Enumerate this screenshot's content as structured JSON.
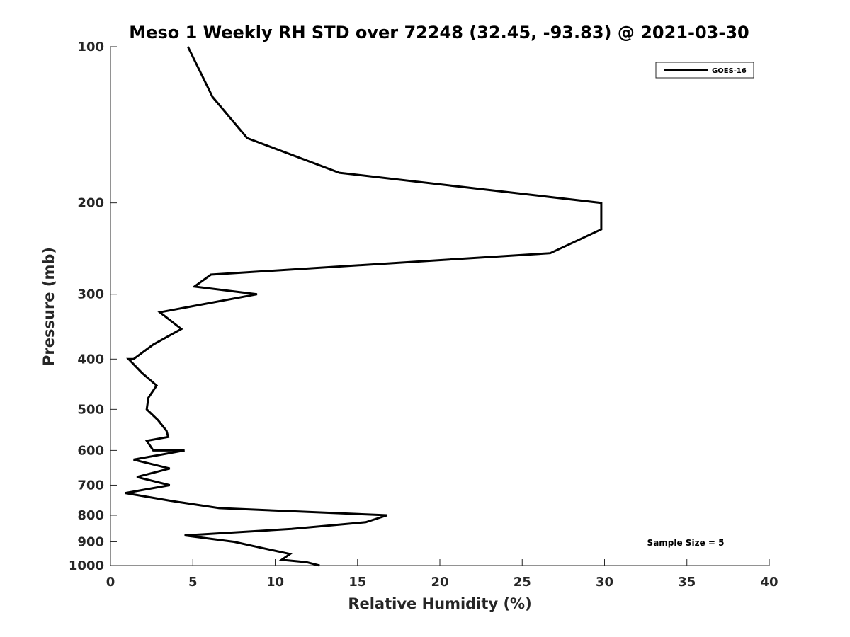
{
  "chart_data": {
    "type": "line",
    "title": "Meso 1 Weekly RH STD over 72248 (32.45, -93.83) @ 2021-03-30",
    "xlabel": "Relative Humidity (%)",
    "ylabel": "Pressure (mb)",
    "xlim": [
      0,
      40
    ],
    "ylim": [
      100,
      1000
    ],
    "y_scale": "log",
    "y_reversed": true,
    "x_ticks": [
      0,
      5,
      10,
      15,
      20,
      25,
      30,
      35,
      40
    ],
    "y_ticks": [
      100,
      200,
      300,
      400,
      500,
      600,
      700,
      800,
      900,
      1000
    ],
    "grid": false,
    "legend_position": "top-right",
    "annotation": "Sample Size = 5",
    "series": [
      {
        "name": "GOES-16",
        "color": "#000000",
        "points": [
          [
            4.7,
            100
          ],
          [
            6.2,
            125
          ],
          [
            8.3,
            150
          ],
          [
            13.9,
            175
          ],
          [
            29.8,
            200
          ],
          [
            29.8,
            225
          ],
          [
            26.7,
            250
          ],
          [
            6.1,
            275
          ],
          [
            5.1,
            290
          ],
          [
            8.9,
            300
          ],
          [
            3.0,
            325
          ],
          [
            4.3,
            350
          ],
          [
            2.6,
            375
          ],
          [
            1.4,
            400
          ],
          [
            1.1,
            400
          ],
          [
            1.9,
            425
          ],
          [
            2.8,
            450
          ],
          [
            2.3,
            475
          ],
          [
            2.2,
            500
          ],
          [
            2.9,
            525
          ],
          [
            3.4,
            550
          ],
          [
            3.5,
            565
          ],
          [
            2.2,
            575
          ],
          [
            2.6,
            600
          ],
          [
            4.5,
            600
          ],
          [
            1.4,
            625
          ],
          [
            3.6,
            650
          ],
          [
            1.6,
            675
          ],
          [
            3.6,
            700
          ],
          [
            0.9,
            725
          ],
          [
            3.6,
            750
          ],
          [
            6.6,
            775
          ],
          [
            16.8,
            800
          ],
          [
            15.5,
            825
          ],
          [
            11.0,
            850
          ],
          [
            4.5,
            875
          ],
          [
            7.5,
            900
          ],
          [
            9.2,
            925
          ],
          [
            10.9,
            950
          ],
          [
            10.4,
            975
          ],
          [
            11.9,
            985
          ],
          [
            12.7,
            1000
          ]
        ]
      }
    ]
  }
}
